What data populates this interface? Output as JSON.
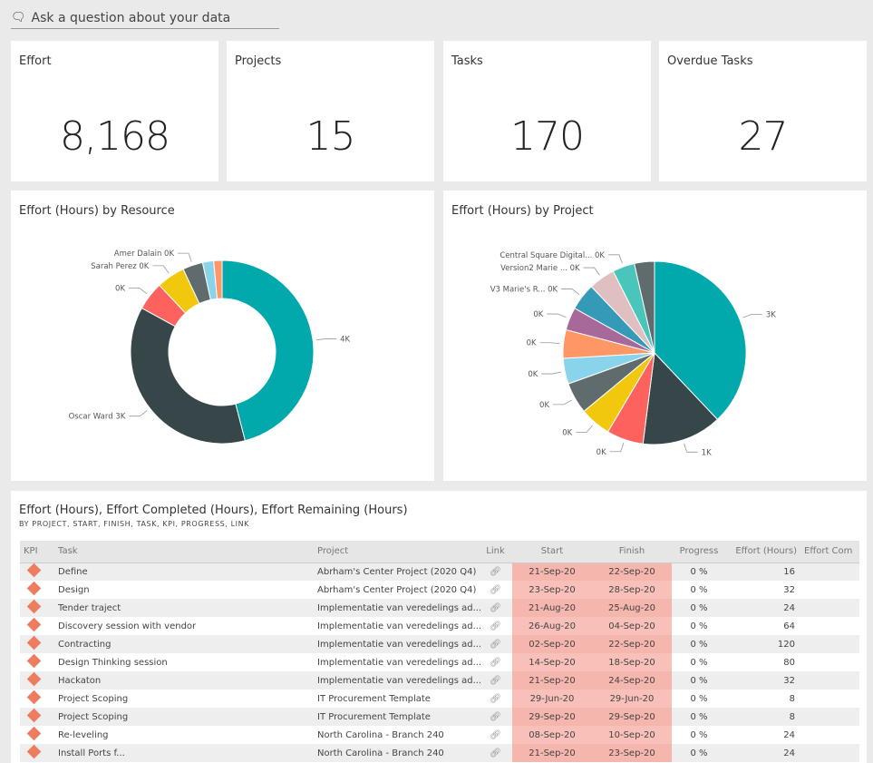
{
  "qa": {
    "icon": "chat-icon",
    "placeholder": "Ask a question about your data"
  },
  "kpis": [
    {
      "title": "Effort",
      "value": "8,168"
    },
    {
      "title": "Projects",
      "value": "15"
    },
    {
      "title": "Tasks",
      "value": "170"
    },
    {
      "title": "Overdue Tasks",
      "value": "27"
    }
  ],
  "chart_data": [
    {
      "type": "pie",
      "variant": "donut",
      "title": "Effort (Hours) by Resource",
      "legend": "none",
      "slices": [
        {
          "label": "4K",
          "value": 3750,
          "color": "#01a9ac"
        },
        {
          "label": "Oscar Ward 3K",
          "value": 3020,
          "color": "#374649"
        },
        {
          "label": "0K",
          "value": 410,
          "color": "#fd625e"
        },
        {
          "label": "Sarah Perez 0K",
          "value": 410,
          "color": "#f2c80f"
        },
        {
          "label": "Amer Dalain 0K",
          "value": 290,
          "color": "#5f6b6d"
        },
        {
          "label": "",
          "value": 160,
          "color": "#8ad4eb"
        },
        {
          "label": "",
          "value": 120,
          "color": "#fe9666"
        }
      ]
    },
    {
      "type": "pie",
      "title": "Effort (Hours) by Project",
      "legend": "none",
      "slices": [
        {
          "label": "3K",
          "value": 3100,
          "color": "#01a9ac"
        },
        {
          "label": "1K",
          "value": 1150,
          "color": "#374649"
        },
        {
          "label": "0K",
          "value": 530,
          "color": "#fd625e"
        },
        {
          "label": "0K",
          "value": 450,
          "color": "#f2c80f"
        },
        {
          "label": "0K",
          "value": 450,
          "color": "#5f6b6d"
        },
        {
          "label": "0K",
          "value": 370,
          "color": "#8ad4eb"
        },
        {
          "label": "0K",
          "value": 410,
          "color": "#fe9666"
        },
        {
          "label": "0K",
          "value": 330,
          "color": "#a66999"
        },
        {
          "label": "V3 Marie's R... 0K",
          "value": 390,
          "color": "#3599b8"
        },
        {
          "label": "Version2 Marie ... 0K",
          "value": 380,
          "color": "#dfbfbf"
        },
        {
          "label": "Central Square Digital... 0K",
          "value": 320,
          "color": "#4ac5bb"
        },
        {
          "label": "",
          "value": 290,
          "color": "#5f6b6d"
        }
      ]
    }
  ],
  "table": {
    "title": "Effort (Hours), Effort Completed (Hours), Effort Remaining (Hours)",
    "subtitle": "BY PROJECT, START, FINISH, TASK, KPI, PROGRESS, LINK",
    "columns": [
      "KPI",
      "Task",
      "Project",
      "Link",
      "Start",
      "Finish",
      "Progress",
      "Effort (Hours)",
      "Effort Com"
    ],
    "kpi_icon": "diamond-icon",
    "link_icon": "link-icon",
    "rows": [
      [
        "Define",
        "Abrham's Center Project (2020 Q4)",
        "21-Sep-20",
        "22-Sep-20",
        "0 %",
        "16"
      ],
      [
        "Design",
        "Abrham's Center Project (2020 Q4)",
        "23-Sep-20",
        "28-Sep-20",
        "0 %",
        "32"
      ],
      [
        "Tender traject",
        "Implementatie van veredelings ad...",
        "21-Aug-20",
        "25-Aug-20",
        "0 %",
        "24"
      ],
      [
        "Discovery session with vendor",
        "Implementatie van veredelings ad...",
        "26-Aug-20",
        "04-Sep-20",
        "0 %",
        "64"
      ],
      [
        "Contracting",
        "Implementatie van veredelings ad...",
        "02-Sep-20",
        "22-Sep-20",
        "0 %",
        "120"
      ],
      [
        "Design Thinking session",
        "Implementatie van veredelings ad...",
        "14-Sep-20",
        "18-Sep-20",
        "0 %",
        "80"
      ],
      [
        "Hackaton",
        "Implementatie van veredelings ad...",
        "21-Sep-20",
        "24-Sep-20",
        "0 %",
        "32"
      ],
      [
        "Project Scoping",
        "IT Procurement Template",
        "29-Jun-20",
        "29-Jun-20",
        "0 %",
        "8"
      ],
      [
        "Project Scoping",
        "IT Procurement Template",
        "29-Sep-20",
        "29-Sep-20",
        "0 %",
        "8"
      ],
      [
        "Re-leveling",
        "North Carolina - Branch 240",
        "08-Sep-20",
        "10-Sep-20",
        "0 %",
        "24"
      ],
      [
        "Install Ports f...",
        "North Carolina - Branch 240",
        "21-Sep-20",
        "23-Sep-20",
        "0 %",
        "24"
      ]
    ]
  }
}
